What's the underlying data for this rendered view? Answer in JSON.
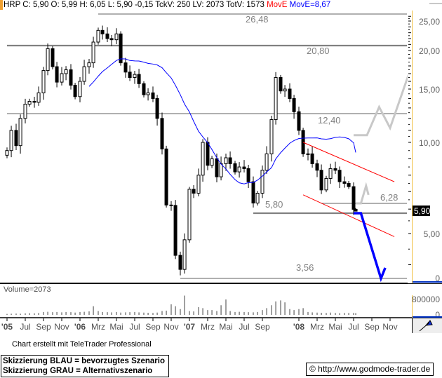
{
  "header": {
    "quote": "HRP C: 5,90 O: 5,99 H: 6,05 L: 5,90 -0,15 TckV: 250 LV: 2073 TotV: 1573",
    "indicator_red": "MovE",
    "indicator_blue": "MovE=8,67"
  },
  "chart_data": {
    "type": "candlestick",
    "symbol": "HRP",
    "y_scale": "non-linear (compressed toward top)",
    "grid": false,
    "y_ticks": [
      "25,00",
      "20,00",
      "15,00",
      "10,00",
      "5,00",
      "0"
    ],
    "y_tick_values": [
      25,
      20,
      15,
      10,
      5,
      0
    ],
    "last_price_label": "5,90",
    "last_price": 5.9,
    "last_candle": {
      "open": 5.99,
      "high": 6.05,
      "low": 5.9,
      "close": 5.9,
      "change": -0.15
    },
    "x_ticks": [
      {
        "label": "'05",
        "date": "2005-05",
        "bold": true
      },
      {
        "label": "Jul",
        "date": "2005-07"
      },
      {
        "label": "Sep",
        "date": "2005-09"
      },
      {
        "label": "Nov",
        "date": "2005-11"
      },
      {
        "label": "'06",
        "date": "2006-01",
        "bold": true
      },
      {
        "label": "Mrz",
        "date": "2006-03"
      },
      {
        "label": "Mai",
        "date": "2006-05"
      },
      {
        "label": "Jul",
        "date": "2006-07"
      },
      {
        "label": "Sep",
        "date": "2006-09"
      },
      {
        "label": "Nov",
        "date": "2006-11"
      },
      {
        "label": "'07",
        "date": "2007-01",
        "bold": true
      },
      {
        "label": "Mrz",
        "date": "2007-03"
      },
      {
        "label": "Mai",
        "date": "2007-05"
      },
      {
        "label": "Jul",
        "date": "2007-07"
      },
      {
        "label": "Sep",
        "date": "2007-09"
      },
      {
        "label": "'08",
        "date": "2008-01",
        "bold": true
      },
      {
        "label": "Mrz",
        "date": "2008-03"
      },
      {
        "label": "Mai",
        "date": "2008-05"
      },
      {
        "label": "Jul",
        "date": "2008-07"
      },
      {
        "label": "Sep",
        "date": "2008-09"
      },
      {
        "label": "Nov",
        "date": "2008-11"
      }
    ],
    "candles": [
      [
        "2005-05-01",
        9.5
      ],
      [
        "2005-05-15",
        11.0
      ],
      [
        "2005-06-01",
        9.8
      ],
      [
        "2005-06-15",
        12.0
      ],
      [
        "2005-07-01",
        13.4
      ],
      [
        "2005-07-15",
        13.7
      ],
      [
        "2005-08-01",
        13.6
      ],
      [
        "2005-08-15",
        14.6
      ],
      [
        "2005-09-01",
        17.4
      ],
      [
        "2005-09-15",
        20.3
      ],
      [
        "2005-10-01",
        17.9
      ],
      [
        "2005-10-15",
        15.9
      ],
      [
        "2005-11-01",
        17.0
      ],
      [
        "2005-11-15",
        17.5
      ],
      [
        "2005-12-01",
        15.5
      ],
      [
        "2005-12-15",
        14.2
      ],
      [
        "2006-01-01",
        16.0
      ],
      [
        "2006-01-15",
        17.9
      ],
      [
        "2006-02-01",
        18.4
      ],
      [
        "2006-02-15",
        21.4
      ],
      [
        "2006-03-01",
        23.4
      ],
      [
        "2006-03-15",
        22.8
      ],
      [
        "2006-04-01",
        22.0
      ],
      [
        "2006-04-15",
        21.8
      ],
      [
        "2006-05-01",
        22.8
      ],
      [
        "2006-05-15",
        18.4
      ],
      [
        "2006-06-01",
        17.2
      ],
      [
        "2006-06-15",
        16.5
      ],
      [
        "2006-07-01",
        16.9
      ],
      [
        "2006-07-15",
        15.7
      ],
      [
        "2006-08-01",
        14.4
      ],
      [
        "2006-08-15",
        14.6
      ],
      [
        "2006-09-01",
        14.0
      ],
      [
        "2006-09-15",
        12.0
      ],
      [
        "2006-10-01",
        9.6
      ],
      [
        "2006-10-15",
        6.2
      ],
      [
        "2006-11-01",
        6.18
      ],
      [
        "2006-11-15",
        4.3
      ],
      [
        "2006-12-01",
        3.85
      ],
      [
        "2006-12-15",
        4.8
      ],
      [
        "2007-01-01",
        7.14
      ],
      [
        "2007-01-15",
        6.9
      ],
      [
        "2007-02-01",
        8.0
      ],
      [
        "2007-02-15",
        10.0
      ],
      [
        "2007-03-01",
        8.6
      ],
      [
        "2007-03-15",
        9.0
      ],
      [
        "2007-04-01",
        7.9
      ],
      [
        "2007-04-15",
        8.7
      ],
      [
        "2007-05-01",
        9.06
      ],
      [
        "2007-05-15",
        8.7
      ],
      [
        "2007-06-01",
        8.2
      ],
      [
        "2007-06-15",
        8.5
      ],
      [
        "2007-07-01",
        8.4
      ],
      [
        "2007-07-15",
        7.6
      ],
      [
        "2007-08-01",
        6.3
      ],
      [
        "2007-08-15",
        6.9
      ],
      [
        "2007-09-01",
        8.3
      ],
      [
        "2007-09-15",
        9.3
      ],
      [
        "2007-10-01",
        11.9
      ],
      [
        "2007-10-15",
        16.5
      ],
      [
        "2007-11-01",
        14.8
      ],
      [
        "2007-11-15",
        15.0
      ],
      [
        "2007-12-01",
        14.0
      ],
      [
        "2007-12-15",
        12.6
      ],
      [
        "2008-01-01",
        11.0
      ],
      [
        "2008-01-15",
        9.3
      ],
      [
        "2008-02-01",
        9.3
      ],
      [
        "2008-02-15",
        8.7
      ],
      [
        "2008-03-01",
        8.3
      ],
      [
        "2008-03-15",
        7.1
      ],
      [
        "2008-04-01",
        7.8
      ],
      [
        "2008-04-15",
        8.4
      ],
      [
        "2008-05-01",
        8.3
      ],
      [
        "2008-05-15",
        7.6
      ],
      [
        "2008-06-01",
        7.5
      ],
      [
        "2008-06-15",
        7.3
      ],
      [
        "2008-07-01",
        5.99
      ],
      [
        "2008-07-08",
        5.9
      ]
    ],
    "volume": [
      50000,
      60000,
      70000,
      60000,
      80000,
      90000,
      80000,
      100000,
      150000,
      160000,
      140000,
      150000,
      130000,
      150000,
      140000,
      120000,
      150000,
      160000,
      180000,
      450000,
      200000,
      150000,
      140000,
      130000,
      150000,
      120000,
      130000,
      140000,
      150000,
      130000,
      120000,
      110000,
      100000,
      120000,
      200000,
      220000,
      550000,
      450000,
      300000,
      1000000,
      200000,
      180000,
      400000,
      350000,
      250000,
      250000,
      200000,
      500000,
      800000,
      200000,
      150000,
      160000,
      150000,
      140000,
      130000,
      150000,
      250000,
      350000,
      500000,
      700000,
      750000,
      650000,
      300000,
      250000,
      300000,
      350000,
      150000,
      130000,
      120000,
      110000,
      100000,
      120000,
      100000,
      90000,
      100000,
      100000,
      100000,
      90000
    ],
    "volume_label": "Volume=2073",
    "volume_ticks": [
      "800000",
      "0"
    ],
    "volume_tick_values": [
      800000,
      0
    ],
    "moving_average": {
      "name": "MovE",
      "value": 8.67,
      "color": "#0000ff"
    },
    "levels": [
      {
        "value": 26.48,
        "label": "26,48",
        "from": "2006-03-01"
      },
      {
        "value": 20.8,
        "label": "20,80",
        "from": "2005-05-01",
        "thick": true
      },
      {
        "value": 12.4,
        "label": "12,40",
        "from": "2005-05-01"
      },
      {
        "value": 6.28,
        "label": "6,28",
        "from": "2008-03-15"
      },
      {
        "value": 5.8,
        "label": "5,80",
        "from": "2007-08-01",
        "thick": true
      },
      {
        "value": 3.56,
        "label": "3,56",
        "from": "2006-12-01"
      }
    ],
    "trend_channel": {
      "color": "#ff0000",
      "upper": [
        [
          "2008-01-15",
          10.0
        ],
        [
          "2008-11-15",
          7.6
        ]
      ],
      "lower": [
        [
          "2008-01-15",
          6.8
        ],
        [
          "2008-11-15",
          4.9
        ]
      ]
    },
    "scenario_blue": {
      "color": "#0000ff",
      "points": [
        [
          "2008-07-01",
          5.8
        ],
        [
          "2008-07-25",
          5.8
        ],
        [
          "2008-10-01",
          3.56
        ],
        [
          "2008-10-15",
          3.9
        ]
      ]
    },
    "scenario_gray": {
      "color": "#c8c8c8",
      "segments": [
        [
          [
            "2008-07-08",
            6.28
          ],
          [
            "2008-07-25",
            6.28
          ],
          [
            "2008-08-12",
            7.35
          ],
          [
            "2008-08-20",
            6.8
          ]
        ],
        [
          [
            "2008-07-01",
            10.6
          ],
          [
            "2008-08-15",
            10.6
          ],
          [
            "2008-09-25",
            13.1
          ],
          [
            "2008-11-01",
            11.2
          ],
          [
            "2009-01-10",
            17.8
          ]
        ]
      ]
    }
  },
  "footer": {
    "credit": "Chart erstellt mit TeleTrader Professional",
    "legend_blue": "Skizzierung BLAU = bevorzugtes Szenario",
    "legend_gray": "Skizzierung GRAU = Alternativszenario",
    "url": "© http://www.godmode-trader.de"
  }
}
